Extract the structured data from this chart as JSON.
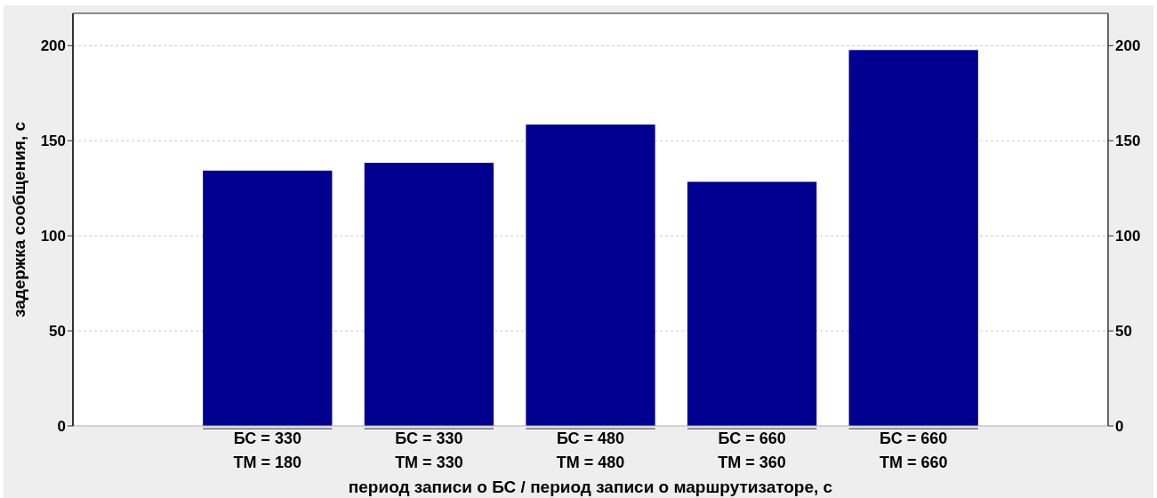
{
  "chart_data": {
    "type": "bar",
    "xlabel": "период записи о БС / период записи о маршрутизаторе, с",
    "ylabel": "задержка сообщения, с",
    "categories": [
      "БС = 330\nТМ = 180",
      "БС = 330\nТМ = 330",
      "БС = 480\nТМ = 480",
      "БС = 660\nТМ = 360",
      "БС = 660\nТМ = 660"
    ],
    "values": [
      134.3,
      138.4,
      158.5,
      128.4,
      197.7
    ],
    "color": "#000090",
    "ylim": [
      0,
      217
    ],
    "yticks": [
      0,
      50,
      100,
      150,
      200
    ],
    "y2lim": [
      0,
      217
    ],
    "y2ticks": [
      0,
      50,
      100,
      150,
      200
    ],
    "grid": "y"
  }
}
